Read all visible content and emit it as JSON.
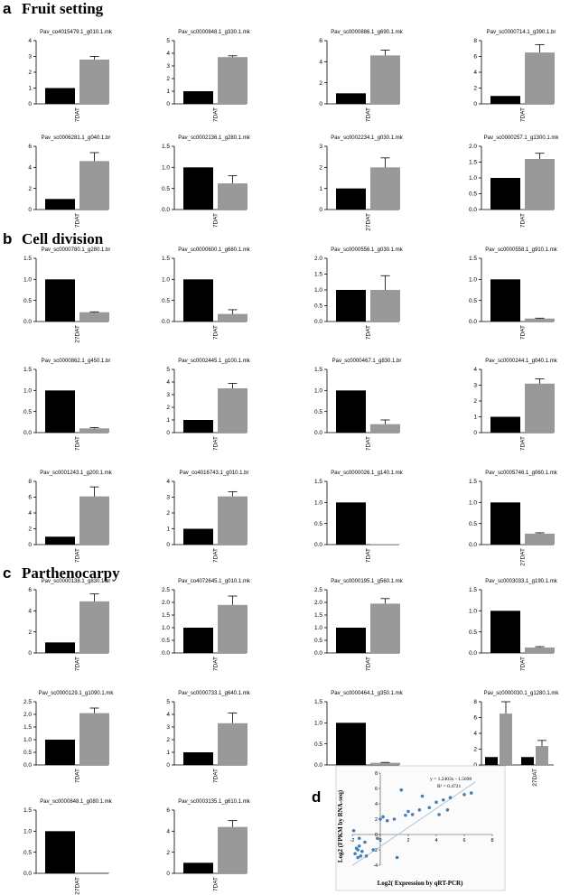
{
  "sections": [
    {
      "letter": "a",
      "title": "Fruit setting"
    },
    {
      "letter": "b",
      "title": "Cell division"
    },
    {
      "letter": "c",
      "title": "Parthenocarpy"
    },
    {
      "letter": "d",
      "title": ""
    }
  ],
  "colors": {
    "black_bar": "#000000",
    "gray_bar": "#999999",
    "scatter_point": "#3f80c0",
    "fit_line": "#9fbfdf",
    "scatter_bg": "#fbfbfb"
  },
  "chart_data": [
    {
      "type": "bar",
      "title": "Pav_co4015479.1_g010.1.mk",
      "categories": [
        "7DAT"
      ],
      "series": [
        {
          "values": [
            1.0
          ]
        },
        {
          "values": [
            2.8
          ],
          "error": [
            0.2
          ]
        }
      ],
      "yticks": [
        "0",
        "1",
        "2",
        "3",
        "4"
      ],
      "ylim": [
        0,
        4
      ]
    },
    {
      "type": "bar",
      "title": "Pav_sc0000848.1_g330.1.mk",
      "categories": [
        "7DAT"
      ],
      "series": [
        {
          "values": [
            1.0
          ]
        },
        {
          "values": [
            3.7
          ],
          "error": [
            0.1
          ]
        }
      ],
      "yticks": [
        "0",
        "1",
        "2",
        "3",
        "4",
        "5"
      ],
      "ylim": [
        0,
        5
      ]
    },
    {
      "type": "bar",
      "title": "Pav_sc0000886.1_g690.1.mk",
      "categories": [
        "7DAT"
      ],
      "series": [
        {
          "values": [
            1.0
          ]
        },
        {
          "values": [
            4.6
          ],
          "error": [
            0.5
          ]
        }
      ],
      "yticks": [
        "0",
        "2",
        "4",
        "6"
      ],
      "ylim": [
        0,
        6
      ]
    },
    {
      "type": "bar",
      "title": "Pav_sc0000714.1_g390.1.br",
      "categories": [
        "7DAT"
      ],
      "series": [
        {
          "values": [
            1.0
          ]
        },
        {
          "values": [
            6.5
          ],
          "error": [
            1.0
          ]
        }
      ],
      "yticks": [
        "0",
        "2",
        "4",
        "6",
        "8"
      ],
      "ylim": [
        0,
        8
      ]
    },
    {
      "type": "bar",
      "title": "Pav_sc0006281.1_g040.1.br",
      "categories": [
        "7DAT"
      ],
      "series": [
        {
          "values": [
            1.0
          ]
        },
        {
          "values": [
            4.6
          ],
          "error": [
            0.8
          ]
        }
      ],
      "yticks": [
        "0",
        "2",
        "4",
        "6"
      ],
      "ylim": [
        0,
        6
      ]
    },
    {
      "type": "bar",
      "title": "Pav_sc0002136.1_g280.1.mk",
      "categories": [
        "7DAT"
      ],
      "series": [
        {
          "values": [
            1.0
          ]
        },
        {
          "values": [
            0.62
          ],
          "error": [
            0.18
          ]
        }
      ],
      "yticks": [
        "0.0",
        "0.5",
        "1.0",
        "1.5"
      ],
      "ylim": [
        0,
        1.5
      ]
    },
    {
      "type": "bar",
      "title": "Pav_sc0002234.1_g030.1.mk",
      "categories": [
        "27DAT"
      ],
      "series": [
        {
          "values": [
            1.0
          ]
        },
        {
          "values": [
            2.0
          ],
          "error": [
            0.45
          ]
        }
      ],
      "yticks": [
        "0",
        "1",
        "2",
        "3"
      ],
      "ylim": [
        0,
        3
      ]
    },
    {
      "type": "bar",
      "title": "Pav_sc0000257.1_g1300.1.mk",
      "categories": [
        "7DAT"
      ],
      "series": [
        {
          "values": [
            1.0
          ]
        },
        {
          "values": [
            1.6
          ],
          "error": [
            0.18
          ]
        }
      ],
      "yticks": [
        "0.0",
        "0.5",
        "1.0",
        "1.5",
        "2.0"
      ],
      "ylim": [
        0,
        2
      ]
    },
    {
      "type": "bar",
      "title": "Pav_sc0000780.1_g280.1.br",
      "categories": [
        "27DAT"
      ],
      "series": [
        {
          "values": [
            1.0
          ]
        },
        {
          "values": [
            0.22
          ],
          "error": [
            0.01
          ]
        }
      ],
      "yticks": [
        "0.0",
        "0.5",
        "1.0",
        "1.5"
      ],
      "ylim": [
        0,
        1.5
      ]
    },
    {
      "type": "bar",
      "title": "Pav_sc0000600.1_g680.1.mk",
      "categories": [
        "7DAT"
      ],
      "series": [
        {
          "values": [
            1.0
          ]
        },
        {
          "values": [
            0.18
          ],
          "error": [
            0.1
          ]
        }
      ],
      "yticks": [
        "0.0",
        "0.5",
        "1.0",
        "1.5"
      ],
      "ylim": [
        0,
        1.5
      ]
    },
    {
      "type": "bar",
      "title": "Pav_sc0000556.1_g030.1.mk",
      "categories": [
        "7DAT"
      ],
      "series": [
        {
          "values": [
            1.0
          ]
        },
        {
          "values": [
            1.0
          ],
          "error": [
            0.45
          ]
        }
      ],
      "yticks": [
        "0.0",
        "0.5",
        "1.0",
        "1.5",
        "2.0"
      ],
      "ylim": [
        0,
        2
      ]
    },
    {
      "type": "bar",
      "title": "Pav_sc0000558.1_g910.1.mk",
      "categories": [
        "7DAT"
      ],
      "series": [
        {
          "values": [
            1.0
          ]
        },
        {
          "values": [
            0.07
          ],
          "error": [
            0.01
          ]
        }
      ],
      "yticks": [
        "0.0",
        "0.5",
        "1.0",
        "1.5"
      ],
      "ylim": [
        0,
        1.5
      ]
    },
    {
      "type": "bar",
      "title": "Pav_sc0000862.1_g450.1.br",
      "categories": [
        "7DAT"
      ],
      "series": [
        {
          "values": [
            1.0
          ]
        },
        {
          "values": [
            0.1
          ],
          "error": [
            0.02
          ]
        }
      ],
      "yticks": [
        "0.0",
        "0.5",
        "1.0",
        "1.5"
      ],
      "ylim": [
        0,
        1.5
      ]
    },
    {
      "type": "bar",
      "title": "Pav_sc0002445.1_g100.1.mk",
      "categories": [
        "7DAT"
      ],
      "series": [
        {
          "values": [
            1.0
          ]
        },
        {
          "values": [
            3.5
          ],
          "error": [
            0.4
          ]
        }
      ],
      "yticks": [
        "0",
        "1",
        "2",
        "3",
        "4",
        "5"
      ],
      "ylim": [
        0,
        5
      ]
    },
    {
      "type": "bar",
      "title": "Pav_sc0000467.1_g830.1.br",
      "categories": [
        "7DAT"
      ],
      "series": [
        {
          "values": [
            1.0
          ]
        },
        {
          "values": [
            0.2
          ],
          "error": [
            0.1
          ]
        }
      ],
      "yticks": [
        "0.0",
        "0.5",
        "1.0",
        "1.5"
      ],
      "ylim": [
        0,
        1.5
      ]
    },
    {
      "type": "bar",
      "title": "Pav_sc0000244.1_g040.1.mk",
      "categories": [
        "7DAT"
      ],
      "series": [
        {
          "values": [
            1.0
          ]
        },
        {
          "values": [
            3.1
          ],
          "error": [
            0.3
          ]
        }
      ],
      "yticks": [
        "0",
        "1",
        "2",
        "3",
        "4"
      ],
      "ylim": [
        0,
        4
      ]
    },
    {
      "type": "bar",
      "title": "Pav_sc0001243.1_g200.1.mk",
      "categories": [
        "7DAT"
      ],
      "series": [
        {
          "values": [
            1.0
          ]
        },
        {
          "values": [
            6.1
          ],
          "error": [
            1.2
          ]
        }
      ],
      "yticks": [
        "0",
        "2",
        "4",
        "6",
        "8"
      ],
      "ylim": [
        0,
        8
      ]
    },
    {
      "type": "bar",
      "title": "Pav_co4016743.1_g010.1.br",
      "categories": [
        "7DAT"
      ],
      "series": [
        {
          "values": [
            1.0
          ]
        },
        {
          "values": [
            3.05
          ],
          "error": [
            0.3
          ]
        }
      ],
      "yticks": [
        "0",
        "1",
        "2",
        "3",
        "4"
      ],
      "ylim": [
        0,
        4
      ]
    },
    {
      "type": "bar",
      "title": "Pav_sc0000026.1_g140.1.mk",
      "categories": [
        "7DAT"
      ],
      "series": [
        {
          "values": [
            1.0
          ]
        },
        {
          "values": [
            0.01
          ],
          "error": [
            0.0
          ]
        }
      ],
      "yticks": [
        "0.0",
        "0.5",
        "1.0",
        "1.5"
      ],
      "ylim": [
        0,
        1.5
      ]
    },
    {
      "type": "bar",
      "title": "Pav_sc0005746.1_g060.1.mk",
      "categories": [
        "27DAT"
      ],
      "series": [
        {
          "values": [
            1.0
          ]
        },
        {
          "values": [
            0.26
          ],
          "error": [
            0.02
          ]
        }
      ],
      "yticks": [
        "0.0",
        "0.5",
        "1.0",
        "1.5"
      ],
      "ylim": [
        0,
        1.5
      ]
    },
    {
      "type": "bar",
      "title": "Pav_sc0000138.1_g830.1.br",
      "categories": [
        "7DAT"
      ],
      "series": [
        {
          "values": [
            1.0
          ]
        },
        {
          "values": [
            4.9
          ],
          "error": [
            0.7
          ]
        }
      ],
      "yticks": [
        "0",
        "2",
        "4",
        "6"
      ],
      "ylim": [
        0,
        6
      ]
    },
    {
      "type": "bar",
      "title": "Pav_co4072645.1_g010.1.mk",
      "categories": [
        "7DAT"
      ],
      "series": [
        {
          "values": [
            1.0
          ]
        },
        {
          "values": [
            1.9
          ],
          "error": [
            0.35
          ]
        }
      ],
      "yticks": [
        "0.0",
        "0.5",
        "1.0",
        "1.5",
        "2.0",
        "2.5"
      ],
      "ylim": [
        0,
        2.5
      ]
    },
    {
      "type": "bar",
      "title": "Pav_sc0000195.1_g560.1.mk",
      "categories": [
        "7DAT"
      ],
      "series": [
        {
          "values": [
            1.0
          ]
        },
        {
          "values": [
            1.95
          ],
          "error": [
            0.2
          ]
        }
      ],
      "yticks": [
        "0.0",
        "0.5",
        "1.0",
        "1.5",
        "2.0",
        "2.5"
      ],
      "ylim": [
        0,
        2.5
      ]
    },
    {
      "type": "bar",
      "title": "Pav_sc0003033.1_g190.1.mk",
      "categories": [
        "7DAT"
      ],
      "series": [
        {
          "values": [
            1.0
          ]
        },
        {
          "values": [
            0.13
          ],
          "error": [
            0.02
          ]
        }
      ],
      "yticks": [
        "0.0",
        "0.5",
        "1.0",
        "1.5"
      ],
      "ylim": [
        0,
        1.5
      ]
    },
    {
      "type": "bar",
      "title": "Pav_sc0000129.1_g1090.1.mk",
      "categories": [
        "7DAT"
      ],
      "series": [
        {
          "values": [
            1.0
          ]
        },
        {
          "values": [
            2.05
          ],
          "error": [
            0.2
          ]
        }
      ],
      "yticks": [
        "0.0",
        "0.5",
        "1.0",
        "1.5",
        "2.0",
        "2.5"
      ],
      "ylim": [
        0,
        2.5
      ]
    },
    {
      "type": "bar",
      "title": "Pav_sc0000733.1_g640.1.mk",
      "categories": [
        "7DAT"
      ],
      "series": [
        {
          "values": [
            1.0
          ]
        },
        {
          "values": [
            3.3
          ],
          "error": [
            0.8
          ]
        }
      ],
      "yticks": [
        "0",
        "1",
        "2",
        "3",
        "4",
        "5"
      ],
      "ylim": [
        0,
        5
      ]
    },
    {
      "type": "bar",
      "title": "Pav_sc0000464.1_g350.1.mk",
      "categories": [
        "27DAT"
      ],
      "series": [
        {
          "values": [
            1.0
          ]
        },
        {
          "values": [
            0.05
          ],
          "error": [
            0.01
          ]
        }
      ],
      "yticks": [
        "0.0",
        "0.5",
        "1.0",
        "1.5"
      ],
      "ylim": [
        0,
        1.5
      ]
    },
    {
      "type": "bar",
      "title": "Pav_sc0000030.1_g1280.1.mk",
      "categories": [
        "7DAT",
        "27DAT"
      ],
      "series": [
        {
          "values": [
            1.0,
            1.0
          ]
        },
        {
          "values": [
            6.5,
            2.4
          ],
          "error": [
            1.5,
            0.7
          ]
        }
      ],
      "yticks": [
        "0",
        "2",
        "4",
        "6",
        "8"
      ],
      "ylim": [
        0,
        8
      ]
    },
    {
      "type": "bar",
      "title": "Pav_sc0000848.1_g080.1.mk",
      "categories": [
        "27DAT"
      ],
      "series": [
        {
          "values": [
            1.0
          ]
        },
        {
          "values": [
            0.0
          ],
          "error": [
            0.0
          ]
        }
      ],
      "yticks": [
        "0.0",
        "0.5",
        "1.0",
        "1.5"
      ],
      "ylim": [
        0,
        1.5
      ]
    },
    {
      "type": "bar",
      "title": "Pav_sc0003135.1_g610.1.mk",
      "categories": [
        "7DAT"
      ],
      "series": [
        {
          "values": [
            1.0
          ]
        },
        {
          "values": [
            4.4
          ],
          "error": [
            0.6
          ]
        }
      ],
      "yticks": [
        "0",
        "2",
        "4",
        "6"
      ],
      "ylim": [
        0,
        6
      ]
    },
    {
      "type": "scatter",
      "title": "",
      "xlabel": "Log2( Expression by qRT-PCR)",
      "ylabel": "Log2 (FPKM by RNA-seq)",
      "xlim": [
        -2,
        8
      ],
      "ylim": [
        -4,
        8
      ],
      "xticks": [
        "-2",
        "0",
        "2",
        "4",
        "6",
        "8"
      ],
      "yticks": [
        "-4",
        "-2",
        "0",
        "2",
        "4",
        "6",
        "8"
      ],
      "equation": "y = 1.2403x - 1.5698",
      "r2": "R² = 0.4721",
      "fit": {
        "slope": 1.2403,
        "intercept": -1.5698
      },
      "points": [
        {
          "x": -1.8,
          "y": -2.5
        },
        {
          "x": -1.7,
          "y": -1.8
        },
        {
          "x": -1.6,
          "y": -3.0
        },
        {
          "x": -1.5,
          "y": -1.5
        },
        {
          "x": -1.3,
          "y": -2.2
        },
        {
          "x": -1.1,
          "y": -1.0
        },
        {
          "x": -1.5,
          "y": -0.5
        },
        {
          "x": -1.9,
          "y": 0.5
        },
        {
          "x": -1.0,
          "y": -2.8
        },
        {
          "x": -0.5,
          "y": -2.0
        },
        {
          "x": 0.0,
          "y": 2.0
        },
        {
          "x": 0.2,
          "y": 2.3
        },
        {
          "x": 0.5,
          "y": 1.8
        },
        {
          "x": 1.0,
          "y": 2.0
        },
        {
          "x": 1.5,
          "y": 5.8
        },
        {
          "x": 1.8,
          "y": 2.5
        },
        {
          "x": 2.0,
          "y": 3.0
        },
        {
          "x": 2.3,
          "y": 2.6
        },
        {
          "x": 2.8,
          "y": 3.2
        },
        {
          "x": 3.0,
          "y": 5.0
        },
        {
          "x": 3.5,
          "y": 3.5
        },
        {
          "x": 4.0,
          "y": 4.2
        },
        {
          "x": 4.2,
          "y": 2.6
        },
        {
          "x": 4.5,
          "y": 4.5
        },
        {
          "x": 4.8,
          "y": 3.2
        },
        {
          "x": 5.0,
          "y": 4.8
        },
        {
          "x": 6.0,
          "y": 5.2
        },
        {
          "x": 6.5,
          "y": 5.4
        },
        {
          "x": 1.2,
          "y": -3.0
        },
        {
          "x": -1.6,
          "y": -2.0
        },
        {
          "x": -1.4,
          "y": -2.8
        },
        {
          "x": -0.2,
          "y": -0.5
        }
      ]
    }
  ]
}
